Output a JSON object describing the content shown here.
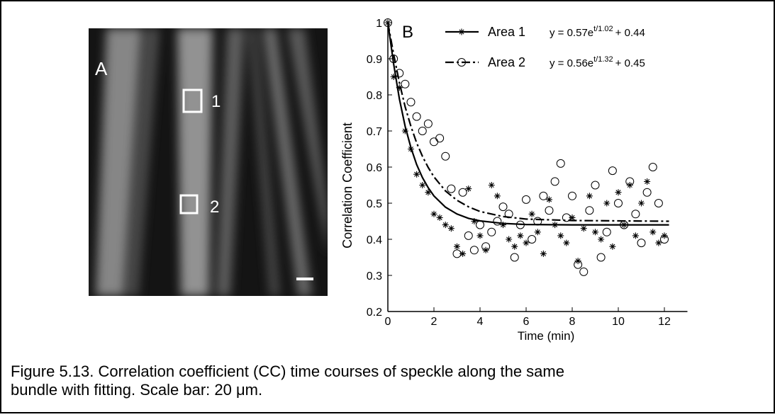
{
  "panel_a": {
    "label": "A",
    "regions": [
      "1",
      "2"
    ]
  },
  "caption": [
    "Figure 5.13. Correlation coefficient (CC) time courses of speckle along the same",
    "bundle with fitting. Scale bar: 20 μm."
  ],
  "chart_data": {
    "type": "scatter",
    "panel_label": "B",
    "xlabel": "Time (min)",
    "ylabel": "Correlation Coefficient",
    "xlim": [
      0,
      13
    ],
    "ylim": [
      0.2,
      1
    ],
    "xticks": [
      0,
      2,
      4,
      6,
      8,
      10,
      12
    ],
    "yticks": [
      0.2,
      0.3,
      0.4,
      0.5,
      0.6,
      0.7,
      0.8,
      0.9,
      1
    ],
    "x": [
      0,
      0.25,
      0.5,
      0.75,
      1,
      1.25,
      1.5,
      1.75,
      2,
      2.25,
      2.5,
      2.75,
      3,
      3.25,
      3.5,
      3.75,
      4,
      4.25,
      4.5,
      4.75,
      5,
      5.25,
      5.5,
      5.75,
      6,
      6.25,
      6.5,
      6.75,
      7,
      7.25,
      7.5,
      7.75,
      8,
      8.25,
      8.5,
      8.75,
      9,
      9.25,
      9.5,
      9.75,
      10,
      10.25,
      10.5,
      10.75,
      11,
      11.25,
      11.5,
      11.75,
      12
    ],
    "series": [
      {
        "name": "Area 1",
        "color": "#000000",
        "marker": "star",
        "line_style": "solid",
        "equation": {
          "base": "y = 0.57e",
          "exponent": "t/1.02",
          "tail": "+ 0.44"
        },
        "values": [
          1.0,
          0.85,
          0.82,
          0.7,
          0.65,
          0.58,
          0.55,
          0.53,
          0.47,
          0.46,
          0.44,
          0.43,
          0.38,
          0.36,
          0.54,
          0.45,
          0.41,
          0.37,
          0.55,
          0.52,
          0.44,
          0.4,
          0.38,
          0.41,
          0.39,
          0.47,
          0.42,
          0.36,
          0.51,
          0.44,
          0.41,
          0.39,
          0.46,
          0.34,
          0.43,
          0.52,
          0.42,
          0.4,
          0.5,
          0.38,
          0.53,
          0.44,
          0.55,
          0.41,
          0.5,
          0.56,
          0.42,
          0.39,
          0.41
        ],
        "fit_x": [
          0,
          0.25,
          0.5,
          0.75,
          1,
          1.25,
          1.5,
          1.75,
          2,
          2.5,
          3,
          3.5,
          4,
          5,
          6,
          8,
          12.2
        ],
        "fit_values": [
          1.0,
          0.886,
          0.789,
          0.713,
          0.654,
          0.607,
          0.571,
          0.543,
          0.52,
          0.489,
          0.47,
          0.458,
          0.451,
          0.444,
          0.441,
          0.44,
          0.44
        ]
      },
      {
        "name": "Area 2",
        "color": "#000000",
        "marker": "circle",
        "line_style": "dashdot",
        "equation": {
          "base": "y = 0.56e",
          "exponent": "t/1.32",
          "tail": "+ 0.45"
        },
        "values": [
          1.0,
          0.9,
          0.86,
          0.83,
          0.78,
          0.74,
          0.7,
          0.72,
          0.67,
          0.68,
          0.63,
          0.54,
          0.36,
          0.53,
          0.41,
          0.37,
          0.44,
          0.38,
          0.42,
          0.45,
          0.49,
          0.47,
          0.35,
          0.44,
          0.51,
          0.4,
          0.45,
          0.52,
          0.48,
          0.56,
          0.61,
          0.46,
          0.52,
          0.33,
          0.31,
          0.48,
          0.55,
          0.35,
          0.42,
          0.59,
          0.5,
          0.44,
          0.56,
          0.47,
          0.39,
          0.53,
          0.6,
          0.5,
          0.4
        ],
        "fit_x": [
          0,
          0.25,
          0.5,
          0.75,
          1,
          1.25,
          1.5,
          1.75,
          2,
          2.5,
          3,
          3.5,
          4,
          5,
          6,
          8,
          12.2
        ],
        "fit_values": [
          1.0,
          0.913,
          0.834,
          0.767,
          0.713,
          0.667,
          0.63,
          0.599,
          0.573,
          0.534,
          0.508,
          0.49,
          0.477,
          0.463,
          0.456,
          0.452,
          0.45
        ]
      }
    ]
  }
}
